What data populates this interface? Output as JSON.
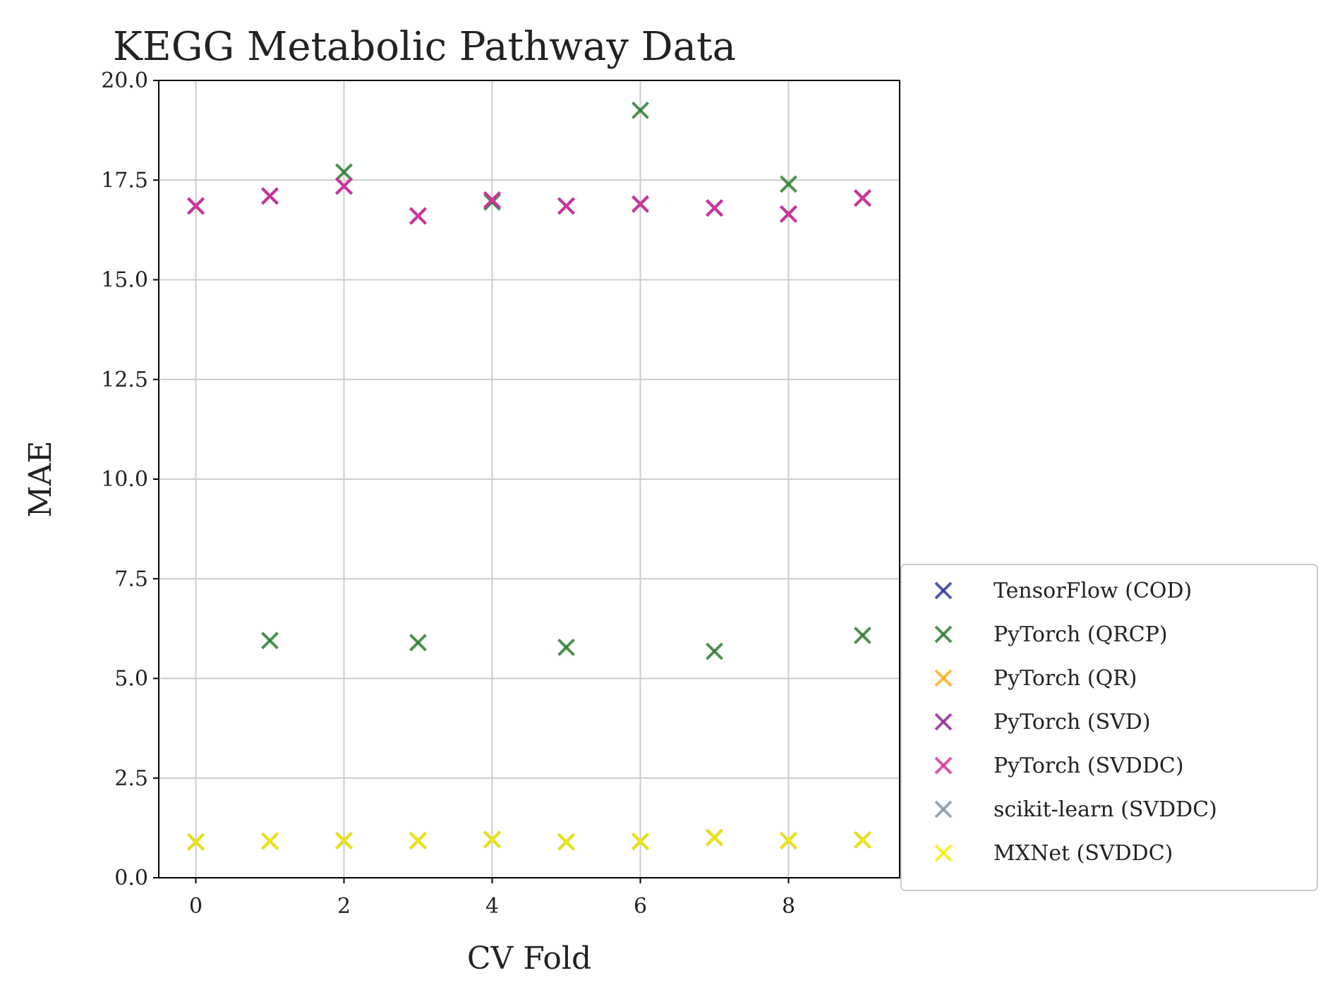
{
  "chart_data": {
    "type": "scatter",
    "title": "KEGG Metabolic Pathway Data",
    "xlabel": "CV Fold",
    "ylabel": "MAE",
    "xlim": [
      -0.5,
      9.5
    ],
    "ylim": [
      0,
      20
    ],
    "xticks": [
      0,
      2,
      4,
      6,
      8
    ],
    "xtick_labels": [
      "0",
      "2",
      "4",
      "6",
      "8"
    ],
    "yticks": [
      0,
      2.5,
      5,
      7.5,
      10,
      12.5,
      15,
      17.5,
      20
    ],
    "ytick_labels": [
      "0.0",
      "2.5",
      "5.0",
      "7.5",
      "10.0",
      "12.5",
      "15.0",
      "17.5",
      "20.0"
    ],
    "grid": true,
    "legend_position": "lower right, outside plot",
    "marker": "x",
    "x": [
      0,
      1,
      2,
      3,
      4,
      5,
      6,
      7,
      8,
      9
    ],
    "series": [
      {
        "name": "TensorFlow (COD)",
        "color": "#2f3a9a",
        "values": [
          16.85,
          17.1,
          17.35,
          16.6,
          17.0,
          16.85,
          16.9,
          16.8,
          16.65,
          17.05
        ]
      },
      {
        "name": "PyTorch (QRCP)",
        "color": "#2e7d32",
        "values": [
          16.85,
          5.95,
          17.7,
          5.9,
          16.95,
          5.78,
          19.25,
          5.68,
          17.4,
          6.08
        ]
      },
      {
        "name": "PyTorch (QR)",
        "color": "#ffad1f",
        "values": [
          0.9,
          0.92,
          0.93,
          0.93,
          0.96,
          0.9,
          0.91,
          1.01,
          0.93,
          0.95
        ]
      },
      {
        "name": "PyTorch (SVD)",
        "color": "#8e2c96",
        "values": [
          16.85,
          17.1,
          17.35,
          16.6,
          17.0,
          16.85,
          16.9,
          16.8,
          16.65,
          17.05
        ]
      },
      {
        "name": "PyTorch (SVDDC)",
        "color": "#d6359a",
        "values": [
          16.85,
          17.1,
          17.35,
          16.6,
          17.0,
          16.85,
          16.9,
          16.8,
          16.65,
          17.05
        ]
      },
      {
        "name": "scikit-learn (SVDDC)",
        "color": "#8896a5",
        "values": [
          0.9,
          0.92,
          0.93,
          0.93,
          0.96,
          0.9,
          0.91,
          1.01,
          0.93,
          0.95
        ]
      },
      {
        "name": "MXNet (SVDDC)",
        "color": "#f4f000",
        "values": [
          0.9,
          0.92,
          0.93,
          0.93,
          0.96,
          0.9,
          0.91,
          1.01,
          0.93,
          0.95
        ]
      }
    ]
  }
}
